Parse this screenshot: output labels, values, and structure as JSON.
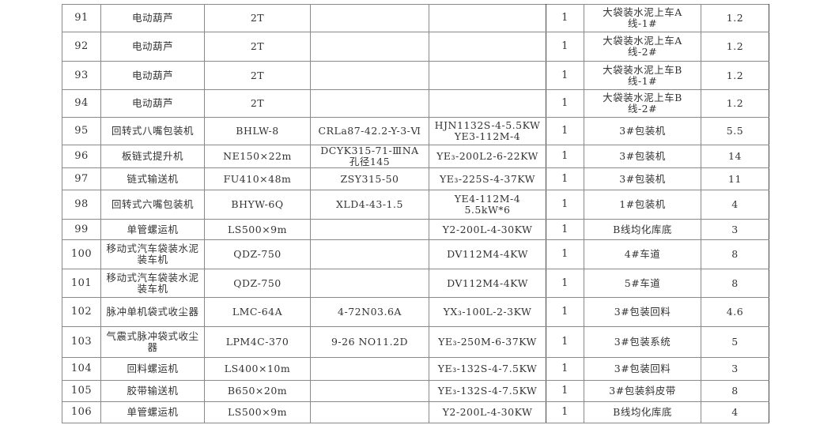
{
  "rows": [
    {
      "no": "91",
      "name": "电动葫芦",
      "spec": "2T",
      "reducer": "",
      "motor": "",
      "qty": "1",
      "location": "大袋装水泥上车A线-1#",
      "power": "1.2"
    },
    {
      "no": "92",
      "name": "电动葫芦",
      "spec": "2T",
      "reducer": "",
      "motor": "",
      "qty": "1",
      "location": "大袋装水泥上车A线-2#",
      "power": "1.2"
    },
    {
      "no": "93",
      "name": "电动葫芦",
      "spec": "2T",
      "reducer": "",
      "motor": "",
      "qty": "1",
      "location": "大袋装水泥上车B线-1#",
      "power": "1.2"
    },
    {
      "no": "94",
      "name": "电动葫芦",
      "spec": "2T",
      "reducer": "",
      "motor": "",
      "qty": "1",
      "location": "大袋装水泥上车B线-2#",
      "power": "1.2"
    },
    {
      "no": "95",
      "name": "回转式八嘴包装机",
      "spec": "BHLW-8",
      "reducer": "CRLa87-42.2-Y-3-Ⅵ",
      "motor": "HJN1132S-4-5.5KW YE3-112M-4",
      "qty": "1",
      "location": "3#包装机",
      "power": "5.5"
    },
    {
      "no": "96",
      "name": "板链式提升机",
      "spec": "NE150×22m",
      "reducer": "DCYK315-71-ⅢNA 孔径145",
      "motor": "YE₃-200L2-6-22KW",
      "qty": "1",
      "location": "3#包装机",
      "power": "14"
    },
    {
      "no": "97",
      "name": "链式输送机",
      "spec": "FU410×48m",
      "reducer": "ZSY315-50",
      "motor": "YE₃-225S-4-37KW",
      "qty": "1",
      "location": "3#包装机",
      "power": "11"
    },
    {
      "no": "98",
      "name": "回转式六嘴包装机",
      "spec": "BHYW-6Q",
      "reducer": "XLD4-43-1.5",
      "motor": "YE4-112M-4 5.5kW*6",
      "qty": "1",
      "location": "1#包装机",
      "power": "4"
    },
    {
      "no": "99",
      "name": "单管螺运机",
      "spec": "LS500×9m",
      "reducer": "",
      "motor": "Y2-200L-4-30KW",
      "qty": "1",
      "location": "B线均化库底",
      "power": "3"
    },
    {
      "no": "100",
      "name": "移动式汽车袋装水泥装车机",
      "spec": "QDZ-750",
      "reducer": "",
      "motor": "DV112M4-4KW",
      "qty": "1",
      "location": "4#车道",
      "power": "8"
    },
    {
      "no": "101",
      "name": "移动式汽车袋装水泥装车机",
      "spec": "QDZ-750",
      "reducer": "",
      "motor": "DV112M4-4KW",
      "qty": "1",
      "location": "5#车道",
      "power": "8"
    },
    {
      "no": "102",
      "name": "脉冲单机袋式收尘器",
      "spec": "LMC-64A",
      "reducer": "4-72N03.6A",
      "motor": "YX₃-100L-2-3KW",
      "qty": "1",
      "location": "3#包装回料",
      "power": "4.6"
    },
    {
      "no": "103",
      "name": "气震式脉冲袋式收尘器",
      "spec": "LPM4C-370",
      "reducer": "9-26 NO11.2D",
      "motor": "YE₃-250M-6-37KW",
      "qty": "1",
      "location": "3#包装系统",
      "power": "5"
    },
    {
      "no": "104",
      "name": "回料螺运机",
      "spec": "LS400×10m",
      "reducer": "",
      "motor": "YE₃-132S-4-7.5KW",
      "qty": "1",
      "location": "3#包装回料",
      "power": "3"
    },
    {
      "no": "105",
      "name": "胶带输送机",
      "spec": "B650×20m",
      "reducer": "",
      "motor": "YE₃-132S-4-7.5KW",
      "qty": "1",
      "location": "3#包装斜皮带",
      "power": "8"
    },
    {
      "no": "106",
      "name": "单管螺运机",
      "spec": "LS500×9m",
      "reducer": "",
      "motor": "Y2-200L-4-30KW",
      "qty": "1",
      "location": "B线均化库底",
      "power": "4"
    }
  ]
}
